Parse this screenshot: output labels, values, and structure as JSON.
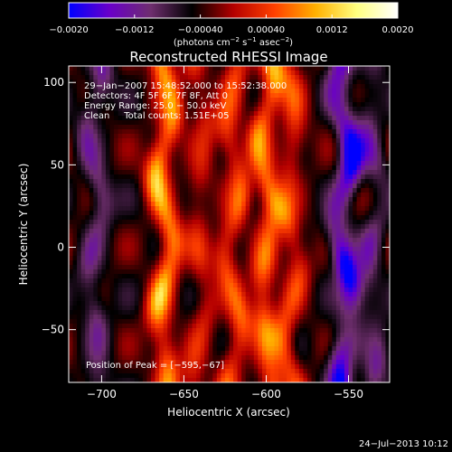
{
  "chart_data": {
    "type": "heatmap",
    "title": "Reconstructed RHESSI Image",
    "xlabel": "Heliocentric X (arcsec)",
    "ylabel": "Heliocentric Y (arcsec)",
    "xlim": [
      -720,
      -525
    ],
    "ylim": [
      -82,
      110
    ],
    "xticks": [
      -700,
      -650,
      -600,
      -550
    ],
    "yticks": [
      100,
      50,
      0,
      -50
    ],
    "xtick_labels": [
      "−700",
      "−650",
      "−600",
      "−550"
    ],
    "ytick_labels": [
      "100",
      "50",
      "0",
      "−50"
    ],
    "colorbar": {
      "range": [
        -0.002,
        0.002
      ],
      "ticks": [
        -0.002,
        -0.0012,
        -0.0004,
        0.0004,
        0.0012,
        0.002
      ],
      "tick_labels": [
        "−0.0020",
        "−0.0012",
        "−0.00040",
        "0.00040",
        "0.0012",
        "0.0020"
      ],
      "unit_main": "(photons cm",
      "unit_exp1": "−2",
      "unit_mid": " s",
      "unit_exp2": "−1",
      "unit_mid2": " asec",
      "unit_exp3": "−2",
      "unit_close": ")",
      "stops": [
        "#0000ff",
        "#6a00c8",
        "#6e2e6e",
        "#000000",
        "#b40000",
        "#ff4000",
        "#ffb000",
        "#ffff80",
        "#ffffff"
      ]
    },
    "annotations": [
      "29−Jan−2007 15:48:52.000 to 15:52:38.000",
      "Detectors: 4F 5F 6F 7F 8F, Att 0",
      "Energy Range: 25.0 − 50.0 keV",
      "Clean     Total counts: 1.51E+05"
    ],
    "peak_label": "Position of Peak = [−595,−67]",
    "peak": [
      -595,
      -67
    ],
    "footer": "24−Jul−2013 10:12",
    "band_centers_x": [
      -704,
      -662,
      -640,
      -620,
      -600,
      -585,
      -552,
      -535
    ],
    "band_levels": [
      -0.0009,
      0.0018,
      0.0008,
      0.0012,
      0.0016,
      0.0011,
      -0.0018,
      -0.0008
    ]
  }
}
